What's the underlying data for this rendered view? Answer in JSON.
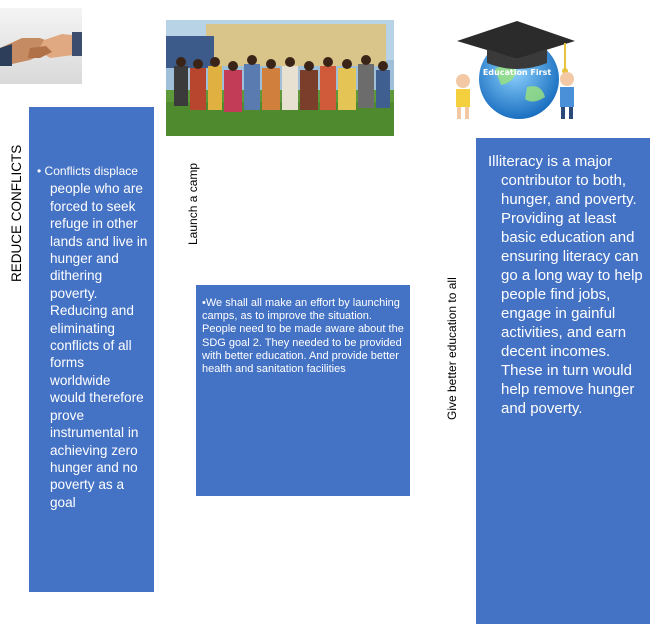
{
  "labels": {
    "left_vertical": "REDUCE CONFLICTS",
    "middle_vertical": "Launch a camp",
    "right_vertical": "Give better education to all"
  },
  "boxes": {
    "conflicts": {
      "bullet": "•",
      "first_line": "Conflicts displace",
      "rest": "people who are forced to seek refuge in other lands and live in hunger and dithering poverty. Reducing and eliminating conflicts of all forms worldwide would therefore prove instrumental in achieving zero hunger and no poverty as a goal"
    },
    "camp": {
      "bullet": "•",
      "text": "We shall all make an effort by launching camps, as to improve the situation. People need to be made aware about the SDG goal 2. They needed to be provided with better education. And provide better health and sanitation facilities"
    },
    "education": {
      "first_line": "Illiteracy is a major",
      "rest": "contributor to both, hunger, and poverty. Providing at least basic education and ensuring literacy can go a long way to help people find jobs, engage in gainful activities, and earn decent incomes. These in turn would help remove hunger and poverty."
    }
  },
  "images": {
    "education_banner_text": "Education First"
  },
  "colors": {
    "box_blue": "#4472c4",
    "text_white": "#ffffff"
  }
}
